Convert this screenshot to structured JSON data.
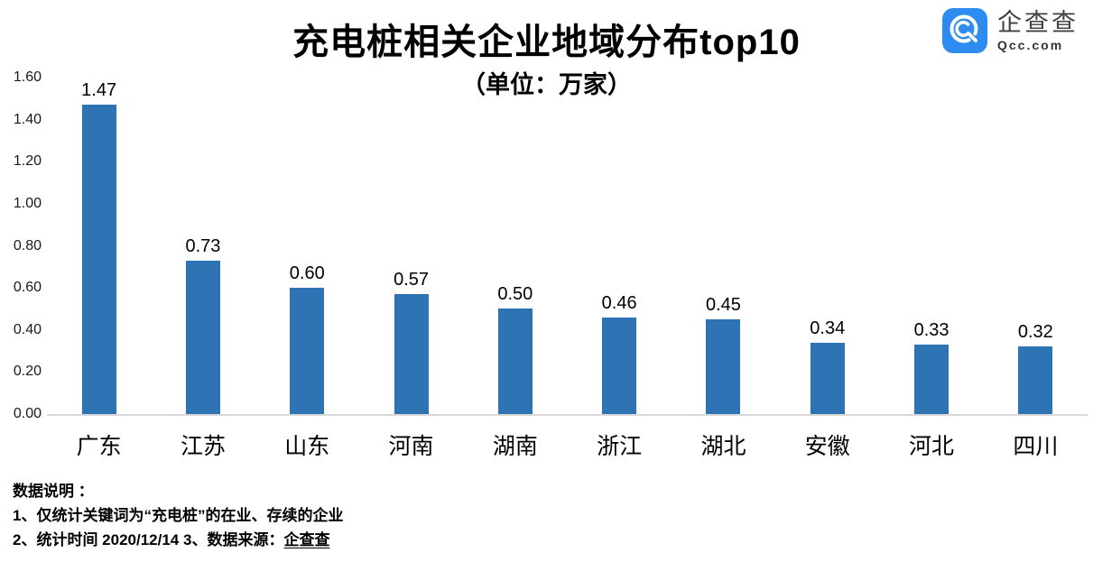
{
  "header": {
    "title": "充电桩相关企业地域分布top10",
    "subtitle": "（单位：万家）",
    "logo": {
      "icon": "qcc-magnifier-icon",
      "brand": "企查查",
      "domain": "Qcc.com",
      "icon_color": "#2E8CF0"
    }
  },
  "chart_data": {
    "type": "bar",
    "title": "充电桩相关企业地域分布top10",
    "subtitle": "（单位：万家）",
    "categories": [
      "广东",
      "江苏",
      "山东",
      "河南",
      "湖南",
      "浙江",
      "湖北",
      "安徽",
      "河北",
      "四川"
    ],
    "values": [
      1.47,
      0.73,
      0.6,
      0.57,
      0.5,
      0.46,
      0.45,
      0.34,
      0.33,
      0.32
    ],
    "value_labels": [
      "1.47",
      "0.73",
      "0.60",
      "0.57",
      "0.50",
      "0.46",
      "0.45",
      "0.34",
      "0.33",
      "0.32"
    ],
    "xlabel": "",
    "ylabel": "",
    "ylim": [
      0,
      1.6
    ],
    "ytick_step": 0.2,
    "ytick_labels": [
      "0.00",
      "0.20",
      "0.40",
      "0.60",
      "0.80",
      "1.00",
      "1.20",
      "1.40",
      "1.60"
    ],
    "grid": false,
    "legend": "none",
    "bar_color": "#2E74B5",
    "axis_line_color": "#D9D9D9"
  },
  "notes": {
    "line1": "数据说明 ：",
    "line2": "1、仅统计关键词为“充电桩”的在业、存续的企业",
    "line3_prefix": "2、统计时间 2020/12/14   3、数据来源：",
    "line3_brand": "企查查"
  }
}
